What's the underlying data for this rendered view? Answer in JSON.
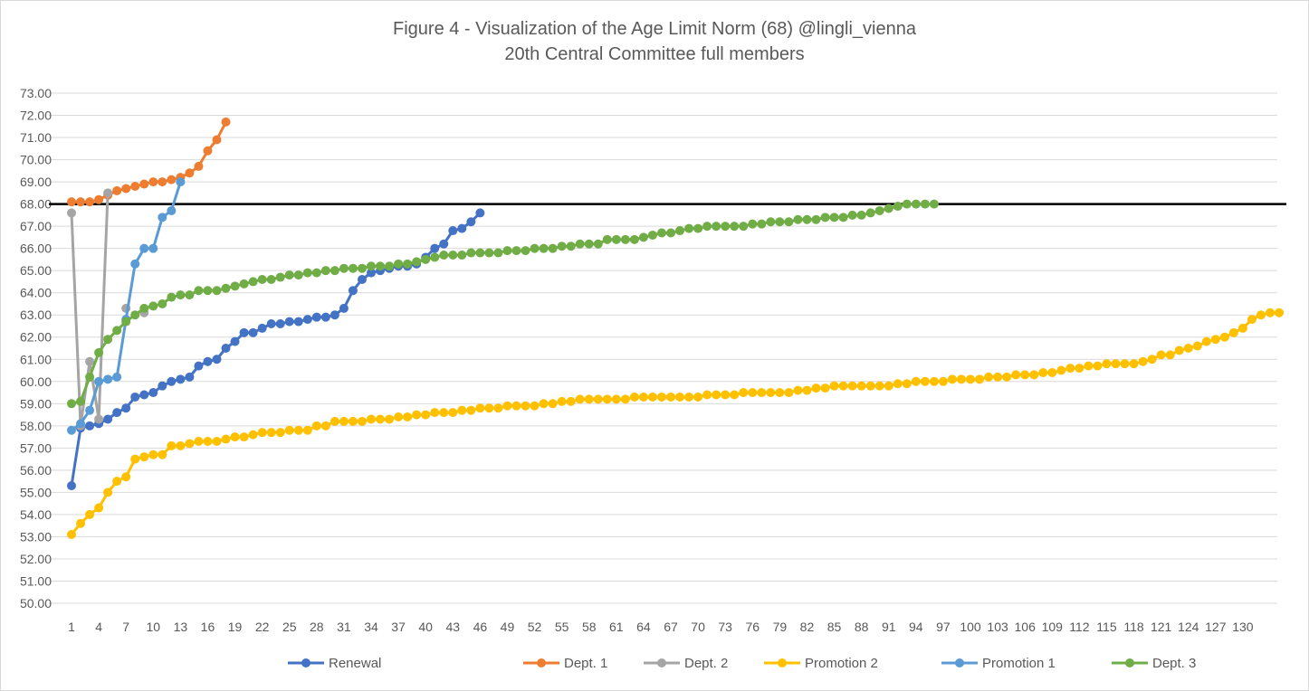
{
  "chart_data": {
    "type": "line",
    "title": "Figure 4 - Visualization of the Age Limit Norm (68) @lingli_vienna",
    "subtitle": "20th Central Committee full members",
    "xlabel": "",
    "ylabel": "",
    "ylim": [
      50,
      73
    ],
    "xlim": [
      1,
      133
    ],
    "y_ticks": [
      50,
      51,
      52,
      53,
      54,
      55,
      56,
      57,
      58,
      59,
      60,
      61,
      62,
      63,
      64,
      65,
      66,
      67,
      68,
      69,
      70,
      71,
      72,
      73
    ],
    "y_tick_labels": [
      "50.00",
      "51.00",
      "52.00",
      "53.00",
      "54.00",
      "55.00",
      "56.00",
      "57.00",
      "58.00",
      "59.00",
      "60.00",
      "61.00",
      "62.00",
      "63.00",
      "64.00",
      "65.00",
      "66.00",
      "67.00",
      "68.00",
      "69.00",
      "70.00",
      "71.00",
      "72.00",
      "73.00"
    ],
    "x_ticks": [
      1,
      4,
      7,
      10,
      13,
      16,
      19,
      22,
      25,
      28,
      31,
      34,
      37,
      40,
      43,
      46,
      49,
      52,
      55,
      58,
      61,
      64,
      67,
      70,
      73,
      76,
      79,
      82,
      85,
      88,
      91,
      94,
      97,
      100,
      103,
      106,
      109,
      112,
      115,
      118,
      121,
      124,
      127,
      130
    ],
    "x_tick_labels": [
      "1",
      "4",
      "7",
      "10",
      "13",
      "16",
      "19",
      "22",
      "25",
      "28",
      "31",
      "34",
      "37",
      "40",
      "43",
      "46",
      "49",
      "52",
      "55",
      "58",
      "61",
      "64",
      "67",
      "70",
      "73",
      "76",
      "79",
      "82",
      "85",
      "88",
      "91",
      "94",
      "97",
      "100",
      "103",
      "106",
      "109",
      "112",
      "115",
      "118",
      "121",
      "124",
      "127",
      "130"
    ],
    "reference_line": {
      "y": 68,
      "color": "#000000"
    },
    "grid": true,
    "legend_position": "bottom",
    "series": [
      {
        "name": "Renewal",
        "color": "#4472C4",
        "values": [
          55.3,
          57.9,
          58.0,
          58.1,
          58.3,
          58.6,
          58.8,
          59.3,
          59.4,
          59.5,
          59.8,
          60.0,
          60.1,
          60.2,
          60.7,
          60.9,
          61.0,
          61.5,
          61.8,
          62.2,
          62.2,
          62.4,
          62.6,
          62.6,
          62.7,
          62.7,
          62.8,
          62.9,
          62.9,
          63.0,
          63.3,
          64.1,
          64.6,
          64.9,
          65.0,
          65.1,
          65.2,
          65.2,
          65.3,
          65.6,
          66.0,
          66.2,
          66.8,
          66.9,
          67.2,
          67.6
        ]
      },
      {
        "name": "Dept. 1",
        "color": "#ED7D31",
        "values": [
          68.1,
          68.1,
          68.1,
          68.2,
          68.4,
          68.6,
          68.7,
          68.8,
          68.9,
          69.0,
          69.0,
          69.1,
          69.2,
          69.4,
          69.7,
          70.4,
          70.9,
          71.7
        ]
      },
      {
        "name": "Dept. 2",
        "color": "#A5A5A5",
        "values": [
          67.6,
          58.0,
          60.9,
          58.3,
          68.5,
          null,
          63.3,
          null,
          63.1
        ]
      },
      {
        "name": "Promotion 2",
        "color": "#FFC000",
        "values": [
          53.1,
          53.6,
          54.0,
          54.3,
          55.0,
          55.5,
          55.7,
          56.5,
          56.6,
          56.7,
          56.7,
          57.1,
          57.1,
          57.2,
          57.3,
          57.3,
          57.3,
          57.4,
          57.5,
          57.5,
          57.6,
          57.7,
          57.7,
          57.7,
          57.8,
          57.8,
          57.8,
          58.0,
          58.0,
          58.2,
          58.2,
          58.2,
          58.2,
          58.3,
          58.3,
          58.3,
          58.4,
          58.4,
          58.5,
          58.5,
          58.6,
          58.6,
          58.6,
          58.7,
          58.7,
          58.8,
          58.8,
          58.8,
          58.9,
          58.9,
          58.9,
          58.9,
          59.0,
          59.0,
          59.1,
          59.1,
          59.2,
          59.2,
          59.2,
          59.2,
          59.2,
          59.2,
          59.3,
          59.3,
          59.3,
          59.3,
          59.3,
          59.3,
          59.3,
          59.3,
          59.4,
          59.4,
          59.4,
          59.4,
          59.5,
          59.5,
          59.5,
          59.5,
          59.5,
          59.5,
          59.6,
          59.6,
          59.7,
          59.7,
          59.8,
          59.8,
          59.8,
          59.8,
          59.8,
          59.8,
          59.8,
          59.9,
          59.9,
          60.0,
          60.0,
          60.0,
          60.0,
          60.1,
          60.1,
          60.1,
          60.1,
          60.2,
          60.2,
          60.2,
          60.3,
          60.3,
          60.3,
          60.4,
          60.4,
          60.5,
          60.6,
          60.6,
          60.7,
          60.7,
          60.8,
          60.8,
          60.8,
          60.8,
          60.9,
          61.0,
          61.2,
          61.2,
          61.4,
          61.5,
          61.6,
          61.8,
          61.9,
          62.0,
          62.2,
          62.4,
          62.8,
          63.0,
          63.1,
          63.1
        ]
      },
      {
        "name": "Promotion 1",
        "color": "#5B9BD5",
        "values": [
          57.8,
          58.1,
          58.7,
          60.0,
          60.1,
          60.2,
          62.8,
          65.3,
          66.0,
          66.0,
          67.4,
          67.7,
          69.0
        ]
      },
      {
        "name": "Dept. 3",
        "color": "#70AD47",
        "values": [
          59.0,
          59.1,
          60.2,
          61.3,
          61.9,
          62.3,
          62.7,
          63.0,
          63.3,
          63.4,
          63.5,
          63.8,
          63.9,
          63.9,
          64.1,
          64.1,
          64.1,
          64.2,
          64.3,
          64.4,
          64.5,
          64.6,
          64.6,
          64.7,
          64.8,
          64.8,
          64.9,
          64.9,
          65.0,
          65.0,
          65.1,
          65.1,
          65.1,
          65.2,
          65.2,
          65.2,
          65.3,
          65.3,
          65.4,
          65.5,
          65.6,
          65.7,
          65.7,
          65.7,
          65.8,
          65.8,
          65.8,
          65.8,
          65.9,
          65.9,
          65.9,
          66.0,
          66.0,
          66.0,
          66.1,
          66.1,
          66.2,
          66.2,
          66.2,
          66.4,
          66.4,
          66.4,
          66.4,
          66.5,
          66.6,
          66.7,
          66.7,
          66.8,
          66.9,
          66.9,
          67.0,
          67.0,
          67.0,
          67.0,
          67.0,
          67.1,
          67.1,
          67.2,
          67.2,
          67.2,
          67.3,
          67.3,
          67.3,
          67.4,
          67.4,
          67.4,
          67.5,
          67.5,
          67.6,
          67.7,
          67.8,
          67.9,
          68.0,
          68.0,
          68.0,
          68.0
        ]
      }
    ]
  }
}
